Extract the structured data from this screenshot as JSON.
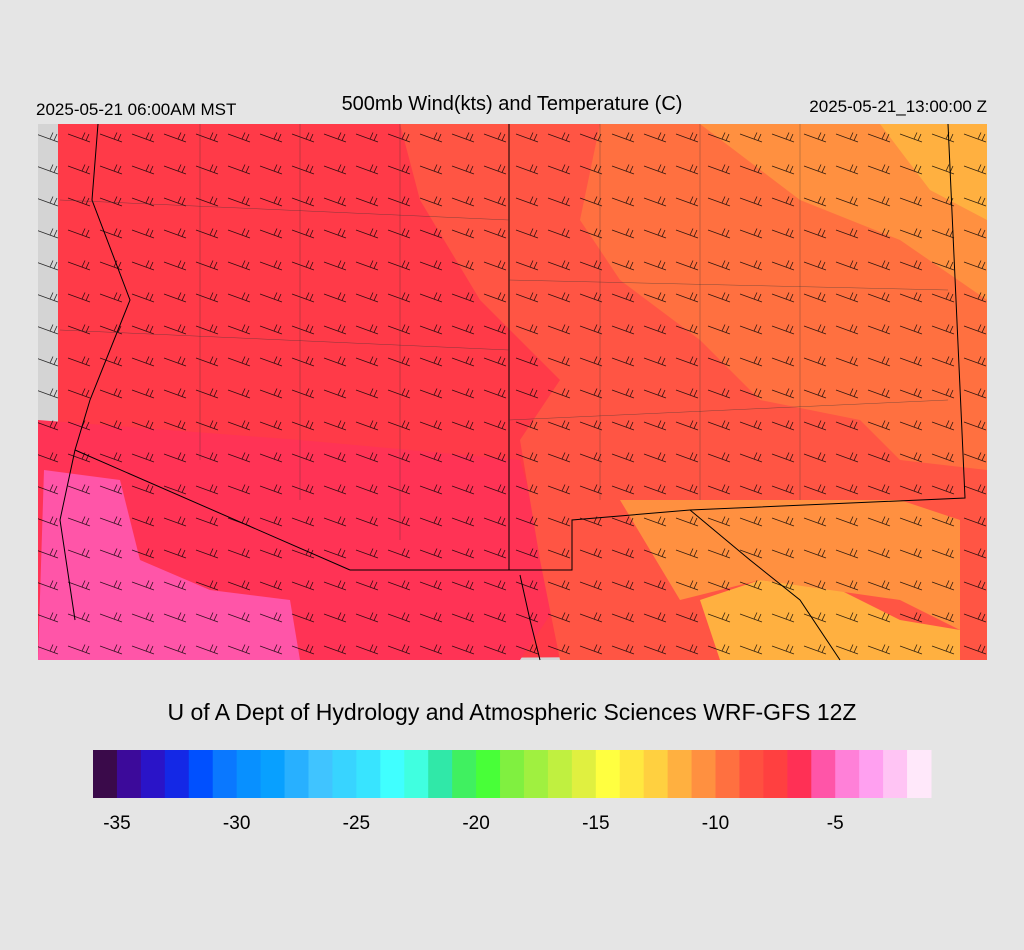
{
  "header": {
    "left": "2025-05-21 06:00AM MST",
    "title": "500mb Wind(kts) and Temperature (C)",
    "right": "2025-05-21_13:00:00 Z"
  },
  "credit": "U of A Dept of Hydrology and Atmospheric Sciences WRF-GFS 12Z",
  "colorbar": {
    "colors": [
      "#3a0a4a",
      "#3c0a9a",
      "#2a14c8",
      "#1428e6",
      "#0050ff",
      "#0a78ff",
      "#0890ff",
      "#08a0ff",
      "#28b0ff",
      "#40c4ff",
      "#38d4ff",
      "#38e4ff",
      "#40ffff",
      "#40ffe0",
      "#30e8a8",
      "#40f060",
      "#48ff38",
      "#80f040",
      "#a0f040",
      "#c0f040",
      "#e0f040",
      "#ffff40",
      "#ffe840",
      "#ffd040",
      "#ffb040",
      "#ff9040",
      "#ff7040",
      "#ff5040",
      "#ff4040",
      "#ff3055",
      "#ff55a8",
      "#ff80d8",
      "#ffa0f0",
      "#ffc4f4",
      "#ffe8fa"
    ],
    "ticks": [
      -35,
      -30,
      -25,
      -20,
      -15,
      -10,
      -5
    ]
  }
}
